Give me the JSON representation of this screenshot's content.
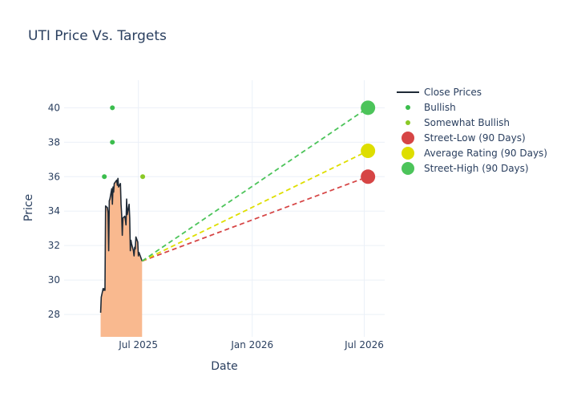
{
  "chart_data": {
    "type": "line",
    "title": "UTI Price Vs. Targets",
    "xlabel": "Date",
    "ylabel": "Price",
    "xlim": [
      "2025-03-03",
      "2026-08-03"
    ],
    "ylim": [
      26.7,
      41.6
    ],
    "yticks": [
      28,
      30,
      32,
      34,
      36,
      38,
      40
    ],
    "xticks": [
      {
        "date": "2025-07-01",
        "label": "Jul 2025"
      },
      {
        "date": "2026-01-01",
        "label": "Jan 2026"
      },
      {
        "date": "2026-07-01",
        "label": "Jul 2026"
      }
    ],
    "grid": true,
    "legend_position": "top-right",
    "close_prices": {
      "name": "Close Prices",
      "color": "#1f2a36",
      "fill_color": "#f9b98f",
      "points": [
        [
          "2025-05-01",
          28.1
        ],
        [
          "2025-05-02",
          29.0
        ],
        [
          "2025-05-05",
          29.5
        ],
        [
          "2025-05-06",
          29.4
        ],
        [
          "2025-05-07",
          29.5
        ],
        [
          "2025-05-08",
          29.4
        ],
        [
          "2025-05-09",
          34.3
        ],
        [
          "2025-05-12",
          34.2
        ],
        [
          "2025-05-13",
          33.9
        ],
        [
          "2025-05-14",
          31.7
        ],
        [
          "2025-05-15",
          34.6
        ],
        [
          "2025-05-16",
          34.7
        ],
        [
          "2025-05-19",
          35.3
        ],
        [
          "2025-05-20",
          34.4
        ],
        [
          "2025-05-21",
          35.4
        ],
        [
          "2025-05-22",
          35.1
        ],
        [
          "2025-05-23",
          35.6
        ],
        [
          "2025-05-27",
          35.8
        ],
        [
          "2025-05-28",
          35.5
        ],
        [
          "2025-05-29",
          35.9
        ],
        [
          "2025-05-30",
          35.4
        ],
        [
          "2025-06-02",
          35.6
        ],
        [
          "2025-06-03",
          34.4
        ],
        [
          "2025-06-04",
          33.8
        ],
        [
          "2025-06-05",
          32.6
        ],
        [
          "2025-06-06",
          33.6
        ],
        [
          "2025-06-09",
          33.7
        ],
        [
          "2025-06-10",
          33.5
        ],
        [
          "2025-06-11",
          33.2
        ],
        [
          "2025-06-12",
          34.7
        ],
        [
          "2025-06-13",
          33.8
        ],
        [
          "2025-06-16",
          34.4
        ],
        [
          "2025-06-17",
          33.6
        ],
        [
          "2025-06-18",
          31.7
        ],
        [
          "2025-06-19",
          32.3
        ],
        [
          "2025-06-20",
          32.1
        ],
        [
          "2025-06-23",
          31.7
        ],
        [
          "2025-06-24",
          31.4
        ],
        [
          "2025-06-25",
          31.9
        ],
        [
          "2025-06-26",
          31.8
        ],
        [
          "2025-06-27",
          32.5
        ],
        [
          "2025-06-30",
          32.2
        ],
        [
          "2025-07-01",
          31.4
        ],
        [
          "2025-07-02",
          31.6
        ],
        [
          "2025-07-03",
          31.5
        ],
        [
          "2025-07-07",
          31.1
        ]
      ]
    },
    "ratings": [
      {
        "name": "Bullish",
        "color": "#3bbd4d",
        "points": [
          [
            "2025-05-07",
            36
          ],
          [
            "2025-05-20",
            40
          ],
          [
            "2025-05-20",
            38
          ]
        ]
      },
      {
        "name": "Somewhat Bullish",
        "color": "#8ac926",
        "points": [
          [
            "2025-07-08",
            36
          ]
        ]
      }
    ],
    "targets": [
      {
        "name": "Street-Low (90 Days)",
        "color": "#d64545",
        "start": [
          "2025-07-07",
          31.1
        ],
        "end": [
          "2026-07-07",
          36.0
        ]
      },
      {
        "name": "Average Rating (90 Days)",
        "color": "#dede00",
        "start": [
          "2025-07-07",
          31.1
        ],
        "end": [
          "2026-07-07",
          37.5
        ]
      },
      {
        "name": "Street-High (90 Days)",
        "color": "#4cc45a",
        "start": [
          "2025-07-07",
          31.1
        ],
        "end": [
          "2026-07-07",
          40.0
        ]
      }
    ]
  }
}
